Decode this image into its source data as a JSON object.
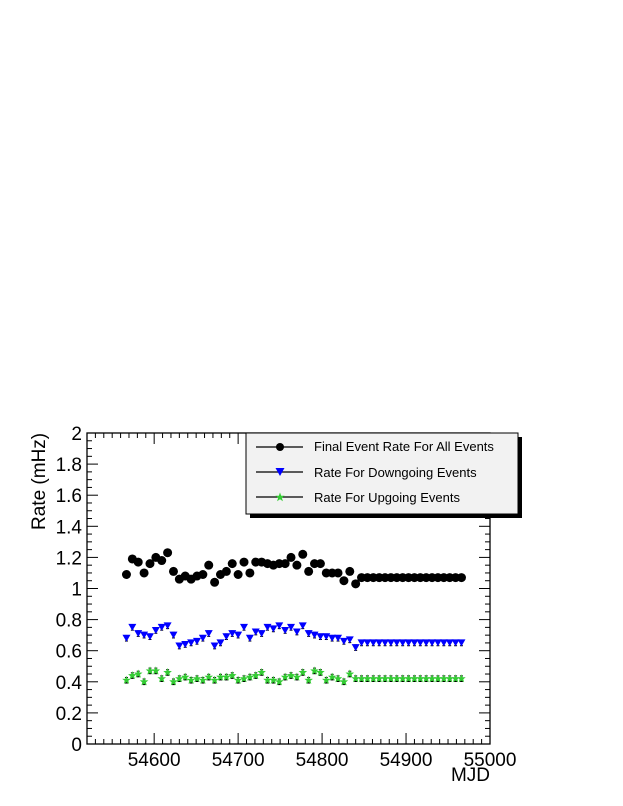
{
  "chart_data": {
    "type": "scatter",
    "title": "",
    "xlabel": "MJD",
    "ylabel": "Rate (mHz)",
    "xlim": [
      54520,
      55000
    ],
    "ylim": [
      0,
      2
    ],
    "x_ticks": [
      "54600",
      "54700",
      "54800",
      "54900",
      "55000"
    ],
    "y_ticks": [
      "0",
      "0.2",
      "0.4",
      "0.6",
      "0.8",
      "1",
      "1.2",
      "1.4",
      "1.6",
      "1.8",
      "2"
    ],
    "grid": false,
    "legend_position": "top-right",
    "x": [
      54567,
      54574,
      54581,
      54588,
      54595,
      54602,
      54609,
      54616,
      54623,
      54630,
      54637,
      54644,
      54651,
      54658,
      54665,
      54672,
      54679,
      54686,
      54693,
      54700,
      54707,
      54714,
      54721,
      54728,
      54735,
      54742,
      54749,
      54756,
      54763,
      54770,
      54777,
      54784,
      54791,
      54798,
      54805,
      54812,
      54819,
      54826,
      54833,
      54840,
      54847,
      54854,
      54861,
      54868,
      54875,
      54882,
      54889,
      54896,
      54903,
      54910,
      54917,
      54924,
      54931,
      54938,
      54945,
      54952,
      54959,
      54966
    ],
    "series": [
      {
        "name": "Final Event Rate For All Events",
        "color": "#000000",
        "marker": "circle",
        "y": [
          1.09,
          1.19,
          1.17,
          1.1,
          1.16,
          1.2,
          1.18,
          1.23,
          1.11,
          1.06,
          1.08,
          1.06,
          1.08,
          1.09,
          1.15,
          1.04,
          1.09,
          1.11,
          1.16,
          1.09,
          1.17,
          1.1,
          1.17,
          1.17,
          1.16,
          1.15,
          1.16,
          1.16,
          1.2,
          1.15,
          1.22,
          1.11,
          1.16,
          1.16,
          1.1,
          1.1,
          1.1,
          1.05,
          1.11,
          1.03,
          1.07,
          1.07,
          1.07,
          1.07,
          1.07,
          1.07,
          1.07,
          1.07,
          1.07,
          1.07,
          1.07,
          1.07,
          1.07,
          1.07,
          1.07,
          1.07,
          1.07,
          1.07
        ]
      },
      {
        "name": "Rate For Downgoing Events",
        "color": "#0000ff",
        "marker": "triangle-down",
        "y": [
          0.68,
          0.75,
          0.71,
          0.7,
          0.69,
          0.73,
          0.75,
          0.76,
          0.7,
          0.63,
          0.64,
          0.65,
          0.66,
          0.68,
          0.71,
          0.63,
          0.65,
          0.69,
          0.71,
          0.7,
          0.75,
          0.68,
          0.72,
          0.71,
          0.75,
          0.74,
          0.76,
          0.73,
          0.75,
          0.72,
          0.76,
          0.71,
          0.7,
          0.69,
          0.69,
          0.68,
          0.68,
          0.66,
          0.67,
          0.62,
          0.65,
          0.65,
          0.65,
          0.65,
          0.65,
          0.65,
          0.65,
          0.65,
          0.65,
          0.65,
          0.65,
          0.65,
          0.65,
          0.65,
          0.65,
          0.65,
          0.65,
          0.65
        ]
      },
      {
        "name": "Rate For Upgoing Events",
        "color": "#33cc33",
        "marker": "star",
        "y": [
          0.41,
          0.44,
          0.45,
          0.4,
          0.47,
          0.47,
          0.42,
          0.46,
          0.4,
          0.42,
          0.43,
          0.41,
          0.42,
          0.41,
          0.43,
          0.41,
          0.43,
          0.43,
          0.44,
          0.41,
          0.42,
          0.43,
          0.44,
          0.46,
          0.41,
          0.41,
          0.4,
          0.43,
          0.44,
          0.43,
          0.46,
          0.41,
          0.47,
          0.46,
          0.41,
          0.43,
          0.42,
          0.4,
          0.45,
          0.42,
          0.42,
          0.42,
          0.42,
          0.42,
          0.42,
          0.42,
          0.42,
          0.42,
          0.42,
          0.42,
          0.42,
          0.42,
          0.42,
          0.42,
          0.42,
          0.42,
          0.42,
          0.42
        ]
      }
    ]
  }
}
